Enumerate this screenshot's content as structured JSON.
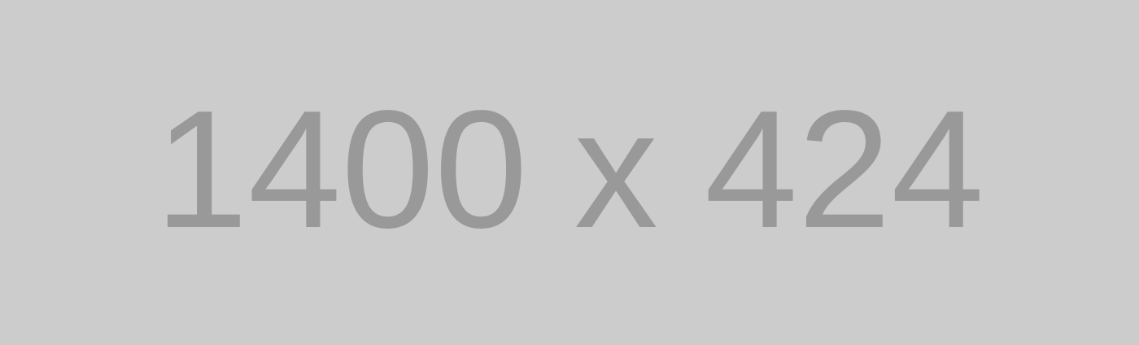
{
  "placeholder": {
    "label": "1400 x 424",
    "background_color": "#cccccc",
    "text_color": "#999999"
  }
}
